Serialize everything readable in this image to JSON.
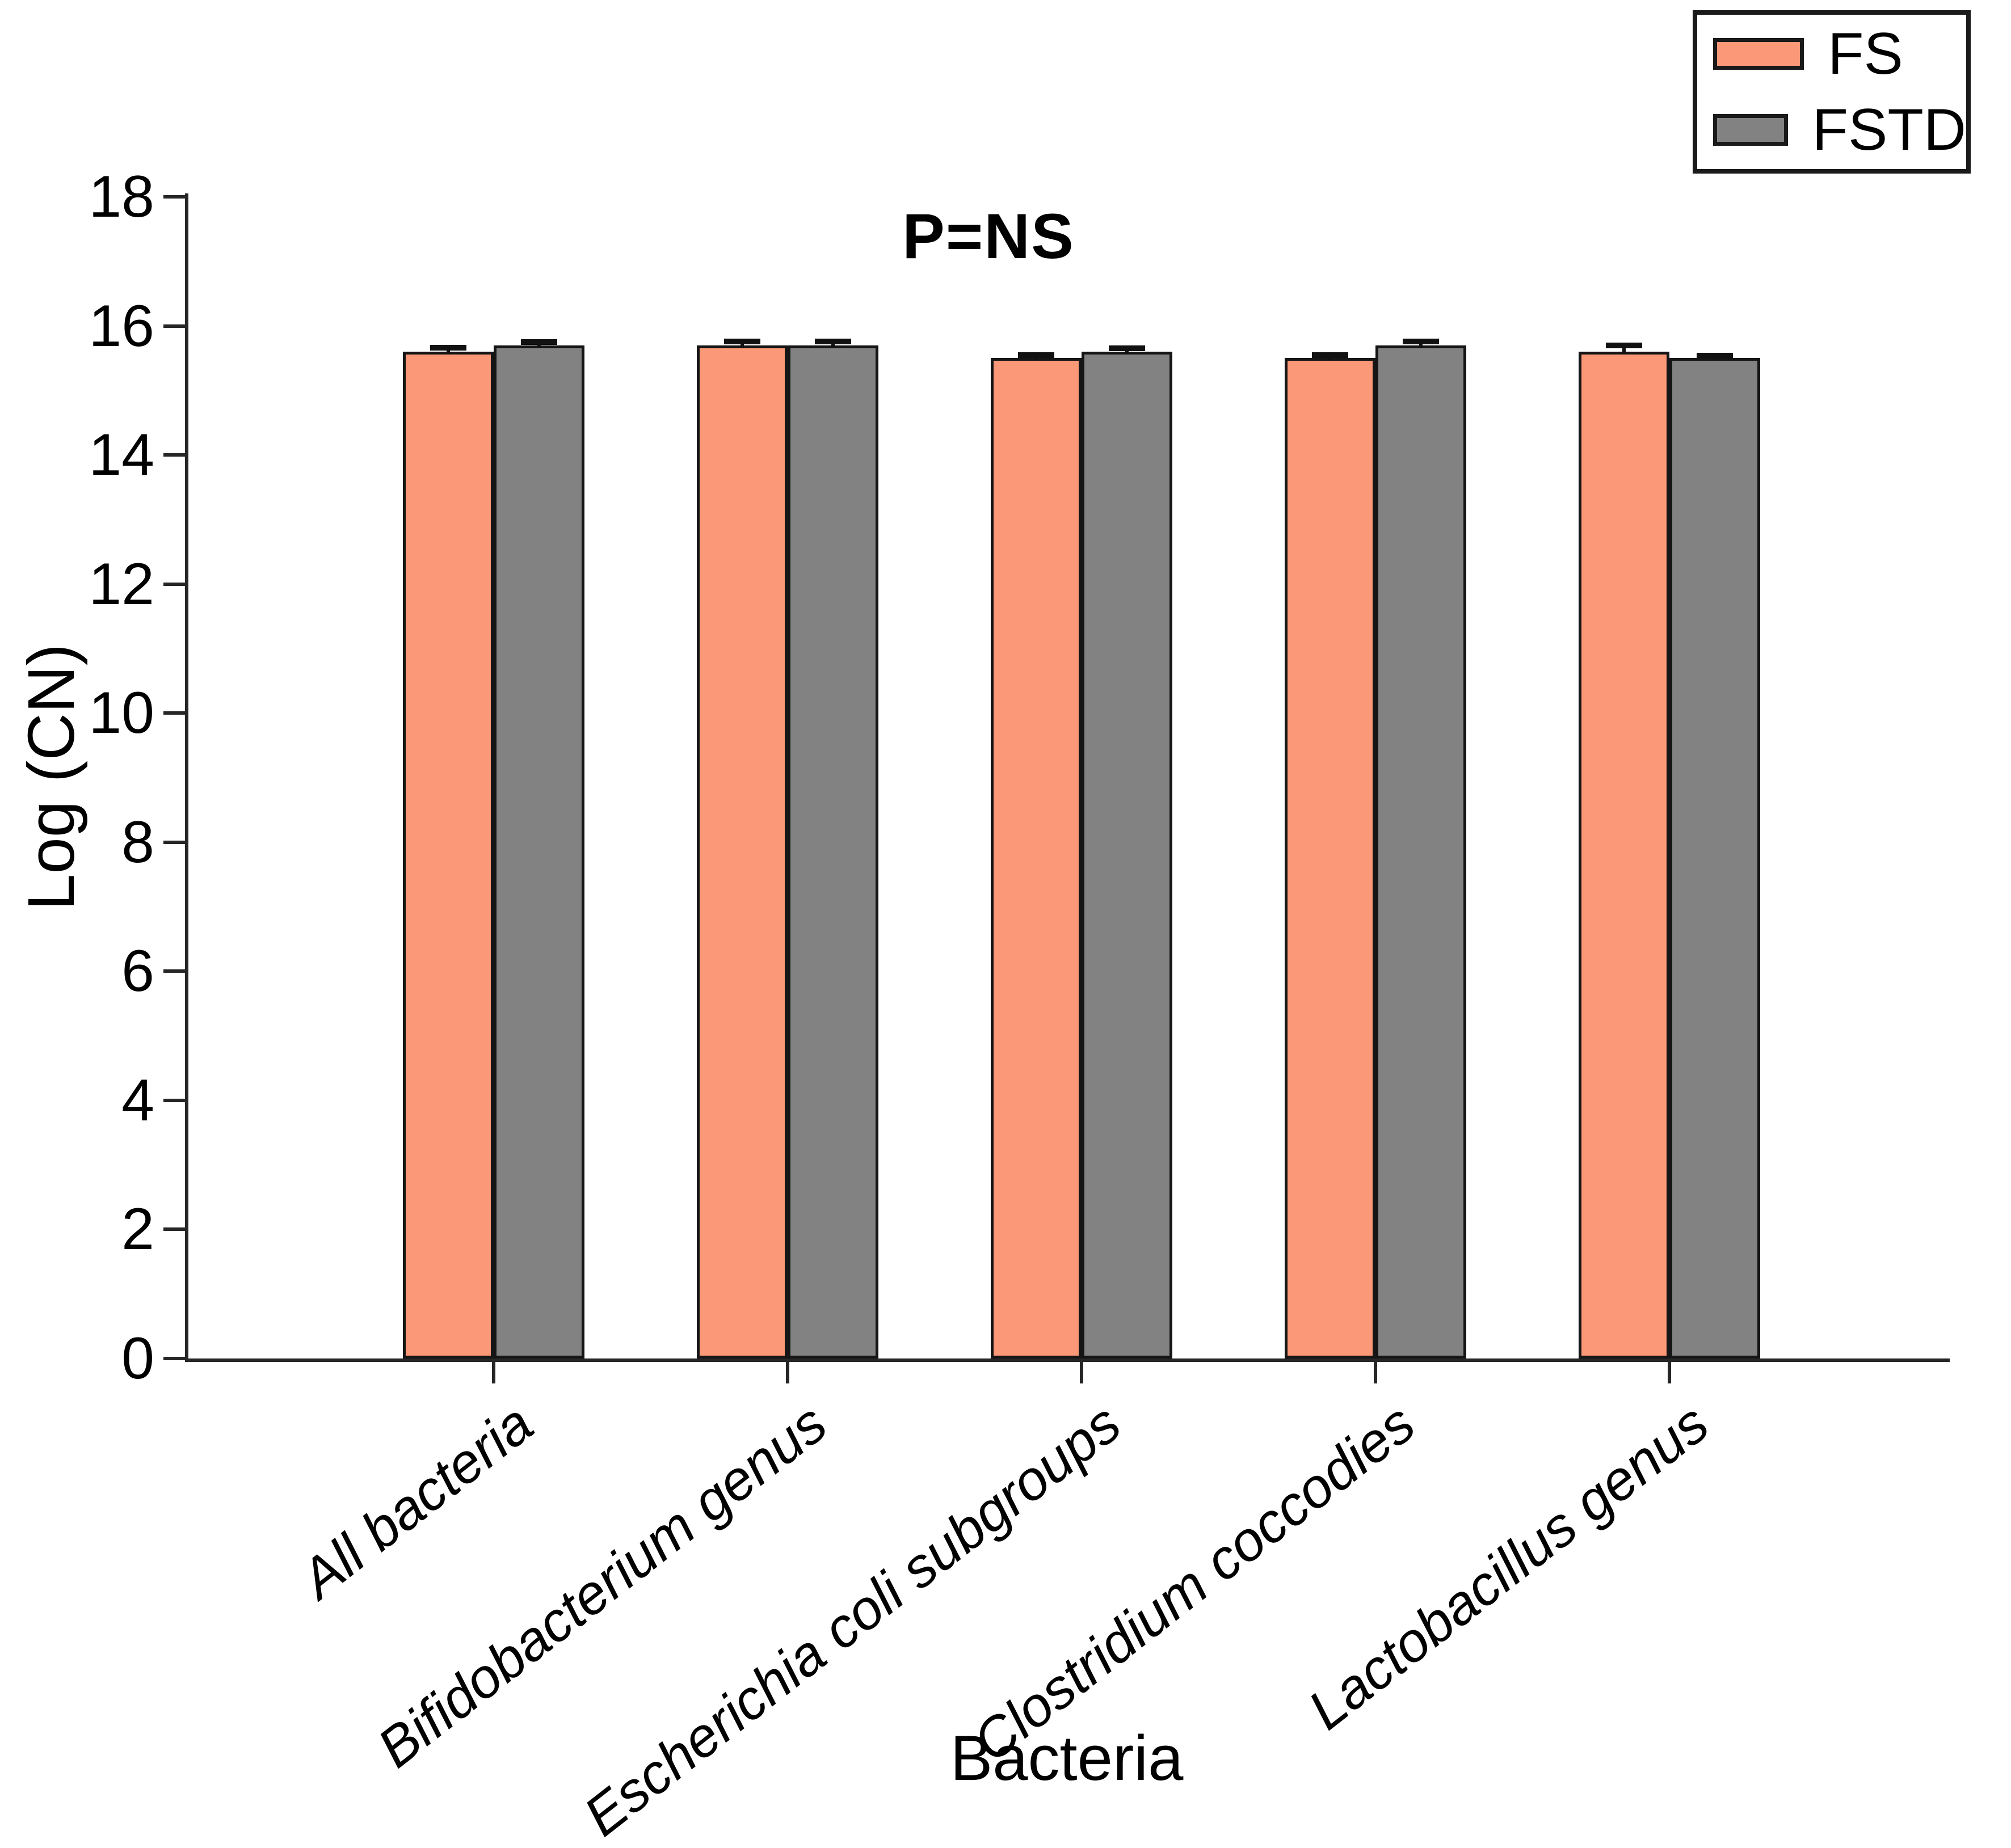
{
  "chart_data": {
    "type": "bar",
    "title": "P=NS",
    "xlabel": "Bacteria",
    "ylabel": "Log (CN)",
    "ylim": [
      0,
      18
    ],
    "ytick_step": 2,
    "grid": false,
    "legend_position": "top-right",
    "bar_outline_color": "#151515",
    "categories": [
      "All bacteria",
      "Bifidobacterium genus",
      "Escherichia coli subgroups",
      "Clostridium coccodies",
      "Lactobacillus genus"
    ],
    "series": [
      {
        "name": "FS",
        "color": "#FB9878",
        "values": [
          15.6,
          15.7,
          15.5,
          15.5,
          15.6
        ],
        "errors": [
          0.06,
          0.06,
          0.05,
          0.05,
          0.1
        ]
      },
      {
        "name": "FSTD",
        "color": "#828282",
        "values": [
          15.7,
          15.7,
          15.6,
          15.7,
          15.5
        ],
        "errors": [
          0.05,
          0.06,
          0.05,
          0.06,
          0.04
        ]
      }
    ]
  }
}
